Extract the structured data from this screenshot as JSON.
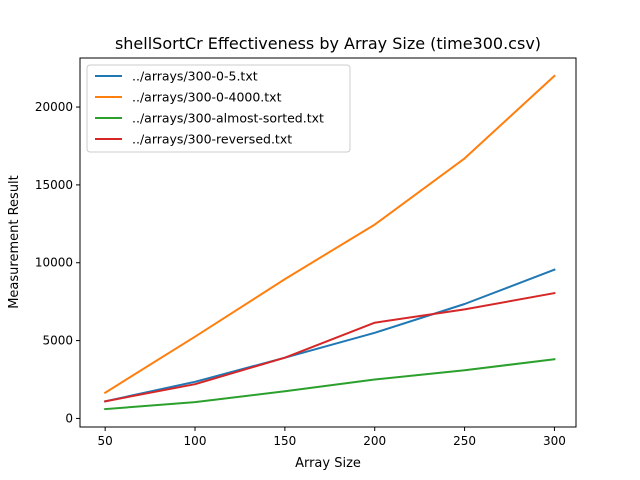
{
  "chart_data": {
    "type": "line",
    "title": "shellSortCr Effectiveness by Array Size (time300.csv)",
    "xlabel": "Array Size",
    "ylabel": "Measurement Result",
    "x": [
      50,
      100,
      150,
      200,
      250,
      300
    ],
    "xticks": [
      50,
      100,
      150,
      200,
      250,
      300
    ],
    "yticks": [
      0,
      5000,
      10000,
      15000,
      20000
    ],
    "xlim": [
      36,
      312
    ],
    "ylim": [
      -550,
      23150
    ],
    "grid": false,
    "legend_position": "upper left",
    "series": [
      {
        "name": "../arrays/300-0-5.txt",
        "color": "#1f77b4",
        "values": [
          1100,
          2350,
          3900,
          5500,
          7350,
          9550
        ]
      },
      {
        "name": "../arrays/300-0-4000.txt",
        "color": "#ff7f0e",
        "values": [
          1650,
          5250,
          8950,
          12450,
          16700,
          22000
        ]
      },
      {
        "name": "../arrays/300-almost-sorted.txt",
        "color": "#2ca02c",
        "values": [
          600,
          1050,
          1750,
          2500,
          3100,
          3800
        ]
      },
      {
        "name": "../arrays/300-reversed.txt",
        "color": "#d62728",
        "values": [
          1100,
          2200,
          3900,
          6150,
          7000,
          8050
        ]
      }
    ]
  }
}
